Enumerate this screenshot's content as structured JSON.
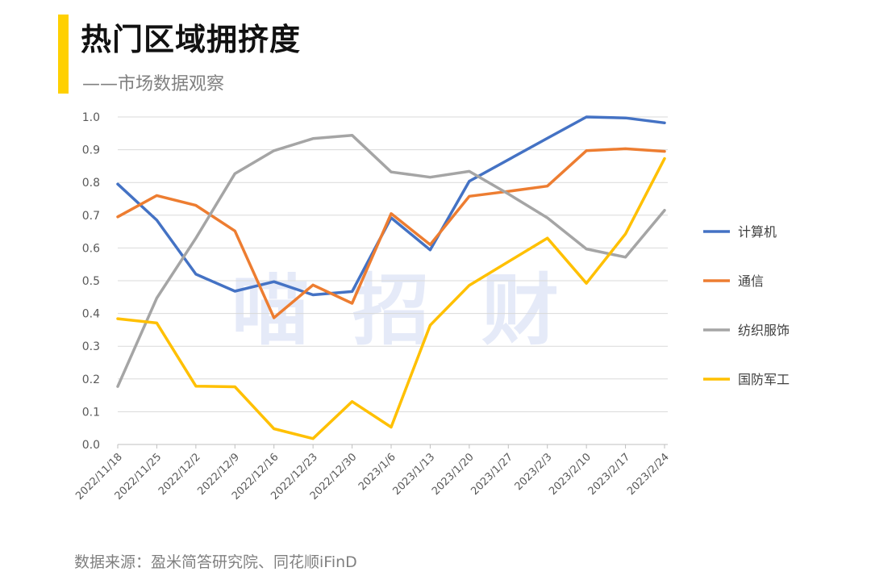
{
  "header": {
    "title": "热门区域拥挤度",
    "subtitle": "——市场数据观察"
  },
  "watermark": [
    "喵",
    "招",
    "财"
  ],
  "source": "数据来源：盈米简答研究院、同花顺iFinD",
  "colors": {
    "accent": "#FFD000",
    "grid": "#D9D9D9",
    "axis": "#BFBFBF"
  },
  "chart_data": {
    "type": "line",
    "categories": [
      "2022/11/18",
      "2022/11/25",
      "2022/12/2",
      "2022/12/9",
      "2022/12/16",
      "2022/12/23",
      "2022/12/30",
      "2023/1/6",
      "2023/1/13",
      "2023/1/20",
      "2023/1/27",
      "2023/2/3",
      "2023/2/10",
      "2023/2/17",
      "2023/2/24"
    ],
    "ylim": [
      0,
      1.0
    ],
    "yticks": [
      "0.0",
      "0.1",
      "0.2",
      "0.3",
      "0.4",
      "0.5",
      "0.6",
      "0.7",
      "0.8",
      "0.9",
      "1.0"
    ],
    "grid": true,
    "legend_position": "right",
    "series": [
      {
        "name": "计算机",
        "color": "#4472C4",
        "values": [
          0.795,
          0.685,
          0.52,
          0.468,
          0.497,
          0.457,
          0.467,
          0.692,
          0.594,
          0.804,
          null,
          0.935,
          1.0,
          0.997,
          0.982
        ]
      },
      {
        "name": "通信",
        "color": "#ED7D31",
        "values": [
          0.695,
          0.76,
          0.73,
          0.652,
          0.387,
          0.487,
          0.431,
          0.705,
          0.61,
          0.758,
          0.773,
          0.789,
          0.897,
          0.903,
          0.895
        ]
      },
      {
        "name": "纺织服饰",
        "color": "#A5A5A5",
        "values": [
          0.177,
          0.447,
          0.63,
          0.827,
          0.897,
          0.934,
          0.944,
          0.832,
          0.816,
          0.834,
          0.765,
          0.692,
          0.597,
          0.572,
          0.715
        ]
      },
      {
        "name": "国防军工",
        "color": "#FFC000",
        "values": [
          0.384,
          0.371,
          0.178,
          0.176,
          0.048,
          0.018,
          0.131,
          0.053,
          0.364,
          0.486,
          null,
          0.63,
          0.492,
          0.643,
          0.873
        ]
      }
    ]
  }
}
